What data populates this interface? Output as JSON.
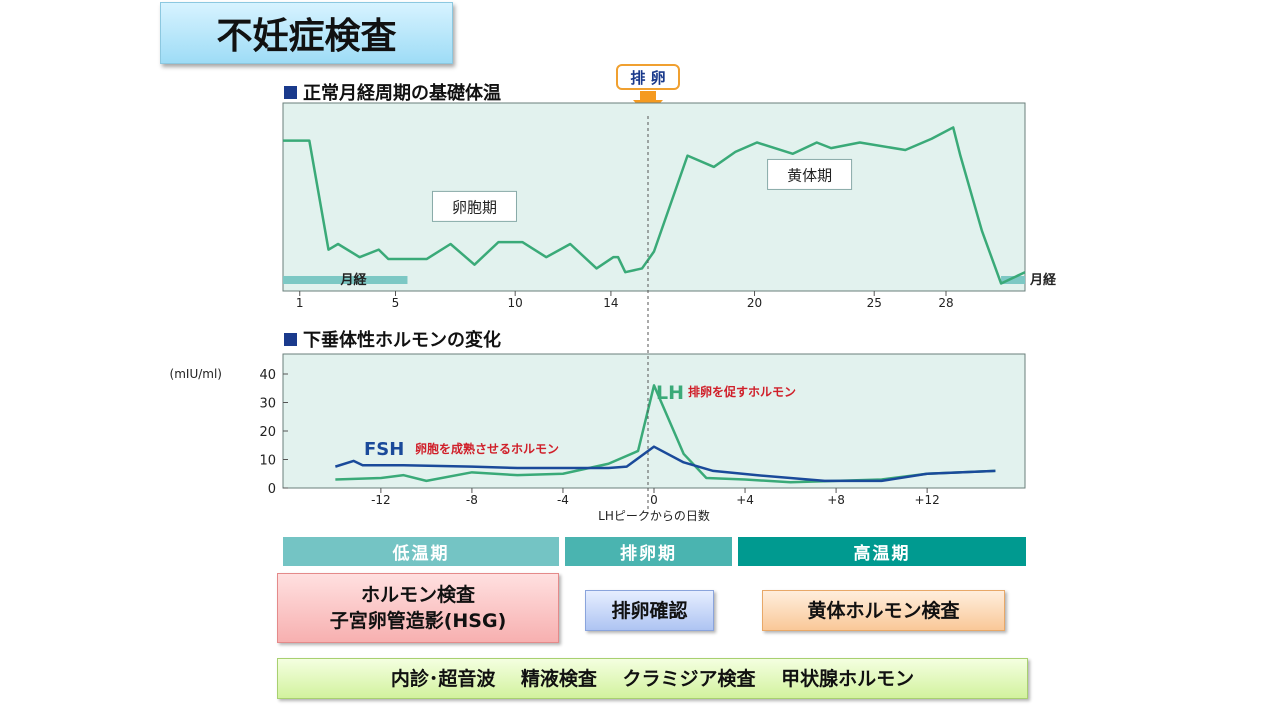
{
  "title": "不妊症検査",
  "ovulation_marker": "排 卵",
  "chart_data": [
    {
      "type": "line",
      "title": "正常月経周期の基礎体温",
      "x_ticks": [
        "1",
        "5",
        "10",
        "14",
        "20",
        "25",
        "28"
      ],
      "xlim": [
        0.3,
        31.3
      ],
      "series": [
        {
          "x": [
            0.3,
            1.4,
            2.2,
            2.6,
            3.5,
            4.3,
            4.7,
            6.3,
            7.3,
            8.3,
            9.3,
            10.3,
            11.3,
            12.3,
            13.4,
            14.1,
            14.3,
            14.6,
            15.3,
            15.8,
            17.2,
            18.3,
            19.2,
            20.1,
            21.6,
            22.6,
            23.2,
            24.4,
            26.3,
            27.4,
            28.3,
            28.6,
            29.5,
            30.3,
            31.3
          ],
          "values": [
            0.8,
            0.8,
            0.22,
            0.25,
            0.18,
            0.22,
            0.17,
            0.17,
            0.25,
            0.14,
            0.26,
            0.26,
            0.18,
            0.25,
            0.12,
            0.18,
            0.18,
            0.1,
            0.12,
            0.21,
            0.72,
            0.66,
            0.74,
            0.79,
            0.73,
            0.79,
            0.76,
            0.79,
            0.75,
            0.81,
            0.87,
            0.72,
            0.32,
            0.04,
            0.1
          ]
        }
      ],
      "annotations": [
        {
          "label": "卵胞期",
          "x": 8.3,
          "y": 0.45
        },
        {
          "label": "黄体期",
          "x": 22.3,
          "y": 0.62
        }
      ],
      "bands": [
        {
          "label": "月経",
          "from": 0.3,
          "to": 5.5
        },
        {
          "label": "月経",
          "from": 30.3,
          "to": 31.3
        }
      ],
      "ovulation_day": 14.3
    },
    {
      "type": "line",
      "title": "下垂体性ホルモンの変化",
      "ylabel": "(mIU/ml)",
      "xlabel": "LHピークからの日数",
      "x_ticks": [
        "-12",
        "-8",
        "-4",
        "0",
        "+4",
        "+8",
        "+12"
      ],
      "y_ticks": [
        0,
        10,
        20,
        30,
        40
      ],
      "xlim": [
        -16.3,
        16.3
      ],
      "ylim": [
        0,
        40
      ],
      "series": [
        {
          "name": "LH",
          "description": "排卵を促すホルモン",
          "color": "#3aaa78",
          "x": [
            -14,
            -12,
            -11,
            -10,
            -8,
            -6,
            -4,
            -2,
            -0.7,
            0,
            1.3,
            2.3,
            4,
            6,
            8,
            10,
            12,
            15
          ],
          "values": [
            3,
            3.5,
            4.5,
            2.5,
            5.5,
            4.5,
            5,
            8.5,
            13,
            36,
            12,
            3.5,
            3,
            2,
            2.5,
            3,
            5,
            6
          ]
        },
        {
          "name": "FSH",
          "description": "卵胞を成熟させるホルモン",
          "color": "#1a4a9a",
          "x": [
            -14,
            -13.2,
            -12.8,
            -11,
            -8,
            -6,
            -4,
            -2,
            -1.2,
            0,
            1.3,
            2.6,
            4.5,
            7.5,
            10,
            12,
            15
          ],
          "values": [
            7.5,
            9.5,
            8,
            8,
            7.5,
            7,
            7,
            7,
            7.5,
            14.5,
            9,
            6,
            4.5,
            2.5,
            2.5,
            5,
            6
          ]
        }
      ]
    }
  ],
  "phases": [
    {
      "label": "低温期",
      "color": "#74c4c4"
    },
    {
      "label": "排卵期",
      "color": "#4ab4b0"
    },
    {
      "label": "高温期",
      "color": "#009a90"
    }
  ],
  "tests": {
    "low_temp_line1": "ホルモン検査",
    "low_temp_line2": "子宮卵管造影(HSG)",
    "ovulation": "排卵確認",
    "high_temp": "黄体ホルモン検査",
    "general": "内診･超音波　 精液検査　 クラミジア検査　 甲状腺ホルモン"
  }
}
